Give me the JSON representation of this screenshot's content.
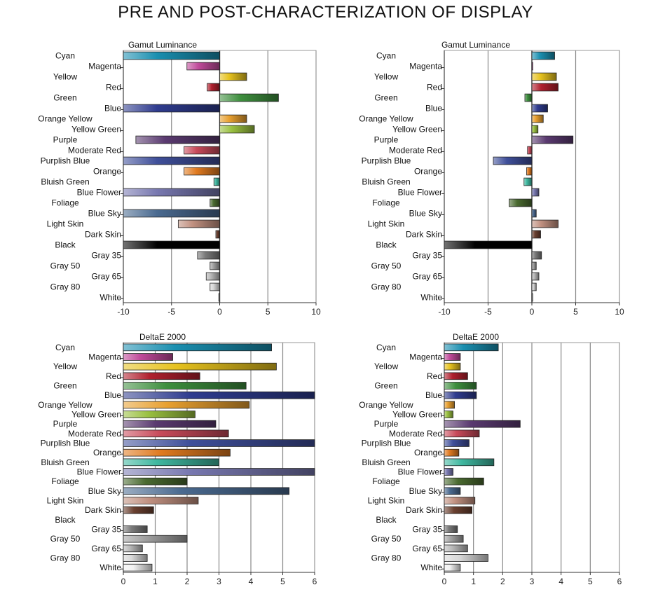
{
  "title": "PRE AND POST-CHARACTERIZATION OF DISPLAY",
  "colors": {
    "Cyan": "#1a8fb0",
    "Magenta": "#c04a9a",
    "Yellow": "#e6c21e",
    "Red": "#b0202e",
    "Green": "#3e8f3e",
    "Blue": "#2f3c8f",
    "Orange Yellow": "#e8a030",
    "Yellow Green": "#9ac040",
    "Purple": "#5a3a70",
    "Moderate Red": "#c84a5a",
    "Purplish Blue": "#3f4f9a",
    "Orange": "#e07a20",
    "Bluish Green": "#40b8a0",
    "Blue Flower": "#7878b0",
    "Foliage": "#4a6a30",
    "Blue Sky": "#4a6a90",
    "Light Skin": "#c09080",
    "Dark Skin": "#6a4030",
    "Black": "#000000",
    "Gray 35": "#7a7a7a",
    "Gray 50": "#a0a0a0",
    "Gray 65": "#b8b8b8",
    "Gray 80": "#d8d8d8",
    "White": "#f2f2f2"
  },
  "chart_data": [
    {
      "type": "bar",
      "orientation": "horizontal",
      "title": "Gamut Luminance",
      "xlim": [
        -10,
        10
      ],
      "xticks": [
        -10,
        -5,
        0,
        5,
        10
      ],
      "grid": true,
      "categories": [
        "Cyan",
        "Magenta",
        "Yellow",
        "Red",
        "Green",
        "Blue",
        "Orange Yellow",
        "Yellow Green",
        "Purple",
        "Moderate Red",
        "Purplish Blue",
        "Orange",
        "Bluish Green",
        "Blue Flower",
        "Foliage",
        "Blue Sky",
        "Light Skin",
        "Dark Skin",
        "Black",
        "Gray 35",
        "Gray 50",
        "Gray 65",
        "Gray 80",
        "White"
      ],
      "values": [
        -10,
        -3.4,
        2.8,
        -1.3,
        6.1,
        -10,
        2.8,
        3.6,
        -8.7,
        -3.7,
        -10,
        -3.7,
        -0.6,
        -10,
        -1.0,
        -10,
        -4.3,
        -0.4,
        -10,
        -2.3,
        -1.0,
        -1.4,
        -1.0,
        -0.1
      ]
    },
    {
      "type": "bar",
      "orientation": "horizontal",
      "title": "Gamut Luminance",
      "xlim": [
        -10,
        10
      ],
      "xticks": [
        -10,
        -5,
        0,
        5,
        10
      ],
      "grid": true,
      "categories": [
        "Cyan",
        "Magenta",
        "Yellow",
        "Red",
        "Green",
        "Blue",
        "Orange Yellow",
        "Yellow Green",
        "Purple",
        "Moderate Red",
        "Purplish Blue",
        "Orange",
        "Bluish Green",
        "Blue Flower",
        "Foliage",
        "Blue Sky",
        "Light Skin",
        "Dark Skin",
        "Black",
        "Gray 35",
        "Gray 50",
        "Gray 65",
        "Gray 80",
        "White"
      ],
      "values": [
        2.6,
        0.1,
        2.8,
        3.0,
        -0.8,
        1.8,
        1.3,
        0.7,
        4.7,
        -0.5,
        -4.4,
        -0.6,
        -0.9,
        0.8,
        -2.6,
        0.5,
        3.0,
        1.0,
        -10,
        1.1,
        0.5,
        0.8,
        0.5,
        0.1
      ]
    },
    {
      "type": "bar",
      "orientation": "horizontal",
      "title": "DeltaE 2000",
      "xlim": [
        0,
        6
      ],
      "xticks": [
        0,
        1,
        2,
        3,
        4,
        5,
        6
      ],
      "grid": true,
      "categories": [
        "Cyan",
        "Magenta",
        "Yellow",
        "Red",
        "Green",
        "Blue",
        "Orange Yellow",
        "Yellow Green",
        "Purple",
        "Moderate Red",
        "Purplish Blue",
        "Orange",
        "Bluish Green",
        "Blue Flower",
        "Foliage",
        "Blue Sky",
        "Light Skin",
        "Dark Skin",
        "Black",
        "Gray 35",
        "Gray 50",
        "Gray 65",
        "Gray 80",
        "White"
      ],
      "values": [
        4.65,
        1.55,
        4.8,
        2.4,
        3.85,
        6.0,
        3.95,
        2.25,
        2.9,
        3.3,
        6.0,
        3.35,
        3.0,
        6.0,
        2.0,
        5.2,
        2.35,
        0.95,
        0,
        0.75,
        2.0,
        0.6,
        0.75,
        0.9
      ]
    },
    {
      "type": "bar",
      "orientation": "horizontal",
      "title": "DeltaE 2000",
      "xlim": [
        0,
        6
      ],
      "xticks": [
        0,
        1,
        2,
        3,
        4,
        5,
        6
      ],
      "grid": true,
      "categories": [
        "Cyan",
        "Magenta",
        "Yellow",
        "Red",
        "Green",
        "Blue",
        "Orange Yellow",
        "Yellow Green",
        "Purple",
        "Moderate Red",
        "Purplish Blue",
        "Orange",
        "Bluish Green",
        "Blue Flower",
        "Foliage",
        "Blue Sky",
        "Light Skin",
        "Dark Skin",
        "Black",
        "Gray 35",
        "Gray 50",
        "Gray 65",
        "Gray 80",
        "White"
      ],
      "values": [
        1.85,
        0.55,
        0.55,
        0.8,
        1.1,
        1.1,
        0.35,
        0.3,
        2.6,
        1.2,
        0.85,
        0.5,
        1.7,
        0.3,
        1.35,
        0.55,
        1.05,
        0.95,
        0,
        0.45,
        0.65,
        0.8,
        1.5,
        0.55
      ]
    }
  ]
}
